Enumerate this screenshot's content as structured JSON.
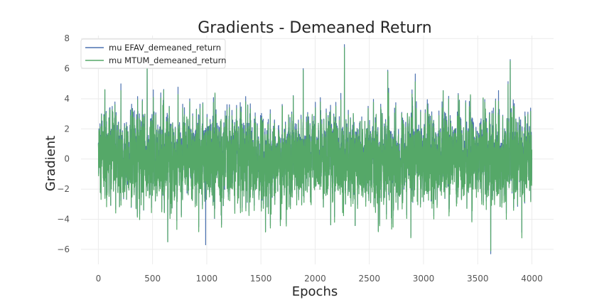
{
  "chart_data": {
    "type": "line",
    "title": "Gradients - Demeaned Return",
    "xlabel": "Epochs",
    "ylabel": "Gradient",
    "xlim": [
      -160,
      4200
    ],
    "ylim": [
      -7,
      8.2
    ],
    "xticks": [
      0,
      500,
      1000,
      1500,
      2000,
      2500,
      3000,
      3500,
      4000
    ],
    "yticks": [
      -6,
      -4,
      -2,
      0,
      2,
      4,
      6,
      8
    ],
    "xtick_labels": [
      "0",
      "500",
      "1000",
      "1500",
      "2000",
      "2500",
      "3000",
      "3500",
      "4000"
    ],
    "ytick_labels": [
      "−6",
      "−4",
      "−2",
      "0",
      "2",
      "4",
      "6",
      "8"
    ],
    "grid": true,
    "legend_position": "top-left",
    "n_points": 4000,
    "noise_std": 1.8,
    "series": [
      {
        "name": "mu EFAV_demeaned_return",
        "color": "#4c72b0",
        "peaks": [
          {
            "x": 0,
            "y": 1.0
          },
          {
            "x": 60,
            "y": 4.6
          },
          {
            "x": 450,
            "y": 6.4
          },
          {
            "x": 990,
            "y": 5.8
          },
          {
            "x": 1890,
            "y": 6.0
          },
          {
            "x": 2270,
            "y": 7.6
          },
          {
            "x": 2670,
            "y": 5.9
          },
          {
            "x": 3800,
            "y": 6.6
          },
          {
            "x": 990,
            "y": -5.7
          },
          {
            "x": 3620,
            "y": -6.3
          },
          {
            "x": 640,
            "y": -5.5
          }
        ]
      },
      {
        "name": "mu MTUM_demeaned_return",
        "color": "#55a868",
        "peaks": [
          {
            "x": 0,
            "y": 1.0
          },
          {
            "x": 60,
            "y": 4.6
          },
          {
            "x": 450,
            "y": 6.4
          },
          {
            "x": 1890,
            "y": 5.9
          },
          {
            "x": 2270,
            "y": 7.4
          },
          {
            "x": 2670,
            "y": 5.8
          },
          {
            "x": 3800,
            "y": 6.5
          },
          {
            "x": 3620,
            "y": -6.1
          },
          {
            "x": 640,
            "y": -5.5
          }
        ]
      }
    ]
  }
}
